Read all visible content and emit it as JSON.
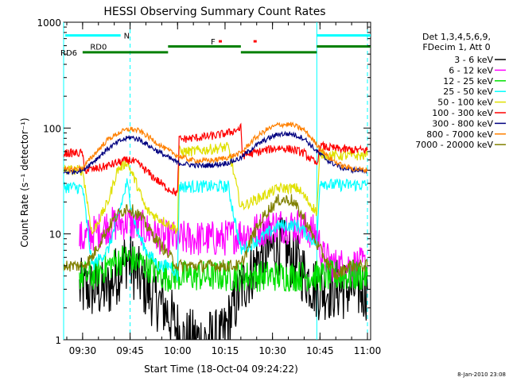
{
  "chart_data": {
    "type": "line",
    "title": "HESSI Observing Summary Count Rates",
    "xlabel": "Start Time (18-Oct-04 09:24:22)",
    "ylabel": "Count Rate (s⁻¹ detector⁻¹)",
    "ylog": true,
    "ylim": [
      1,
      1000
    ],
    "xlim_minutes_after_0924": [
      0,
      97
    ],
    "x_tick_labels": [
      "09:30",
      "09:45",
      "10:00",
      "10:15",
      "10:30",
      "10:45",
      "11:00"
    ],
    "x_tick_minutes": [
      6,
      21,
      36,
      51,
      66,
      81,
      96
    ],
    "y_tick_labels": [
      "1",
      "10",
      "100",
      "1000"
    ],
    "y_tick_values": [
      1,
      10,
      100,
      1000
    ],
    "legend": {
      "header_lines": [
        "Det 1,3,4,5,6,9,",
        "FDecim 1, Att 0"
      ],
      "placement": "right"
    },
    "series": [
      {
        "name": "3 - 6 keV",
        "color": "#000000",
        "x": [
          5,
          9,
          14,
          20,
          26,
          32,
          38,
          44,
          50,
          56,
          62,
          68,
          74,
          80,
          82,
          86,
          90,
          96
        ],
        "values": [
          3,
          3,
          3,
          6,
          3,
          2,
          1,
          1,
          1,
          3,
          6,
          8,
          5,
          3,
          3,
          3,
          3,
          3
        ]
      },
      {
        "name": "6 - 12 keV",
        "color": "#ff00ff",
        "x": [
          5,
          6,
          9,
          14,
          20,
          26,
          32,
          38,
          44,
          50,
          56,
          62,
          66,
          70,
          74,
          80,
          82,
          86,
          90,
          96
        ],
        "values": [
          9,
          9,
          10,
          12,
          13,
          11,
          9,
          9,
          9,
          9,
          10,
          11,
          12,
          12,
          12,
          10,
          6,
          5,
          5,
          5
        ]
      },
      {
        "name": "12 - 25 keV",
        "color": "#00e000",
        "x": [
          5,
          9,
          14,
          20,
          26,
          32,
          38,
          44,
          50,
          56,
          62,
          68,
          74,
          80,
          82,
          86,
          90,
          96
        ],
        "values": [
          4,
          4,
          5,
          6,
          5,
          4,
          4,
          4,
          4,
          4,
          4,
          4,
          4,
          4,
          4,
          4,
          4,
          4
        ]
      },
      {
        "name": "25 - 50 keV",
        "color": "#00ffff",
        "x": [
          0,
          6,
          9,
          14,
          17,
          20,
          23,
          26,
          30,
          34,
          36,
          36.5,
          40,
          44,
          48,
          52,
          56,
          62,
          68,
          74,
          80,
          81,
          84,
          88,
          92,
          96
        ],
        "values": [
          28,
          27,
          5,
          7,
          14,
          30,
          11,
          7,
          5,
          5,
          4,
          28,
          28,
          28,
          28,
          28,
          7,
          9,
          12,
          12,
          8,
          32,
          29,
          29,
          29,
          29
        ]
      },
      {
        "name": "50 - 100 keV",
        "color": "#e0e000",
        "x": [
          0,
          6,
          9,
          14,
          17,
          20,
          23,
          26,
          30,
          34,
          36,
          36.5,
          40,
          44,
          48,
          52,
          56,
          62,
          68,
          74,
          80,
          81,
          84,
          88,
          92,
          96
        ],
        "values": [
          40,
          40,
          10,
          20,
          40,
          48,
          30,
          17,
          14,
          12,
          11,
          60,
          60,
          62,
          64,
          66,
          18,
          22,
          27,
          27,
          16,
          58,
          55,
          55,
          55,
          55
        ]
      },
      {
        "name": "100 - 300 keV",
        "color": "#ff0000",
        "x": [
          0,
          6,
          6.5,
          10,
          14,
          18,
          21,
          24,
          28,
          32,
          36,
          36.5,
          40,
          44,
          48,
          52,
          56,
          56.5,
          60,
          64,
          68,
          72,
          76,
          80,
          81,
          84,
          88,
          92,
          96
        ],
        "values": [
          58,
          58,
          40,
          41,
          44,
          48,
          50,
          45,
          35,
          28,
          24,
          78,
          80,
          82,
          85,
          90,
          100,
          55,
          58,
          62,
          65,
          63,
          58,
          45,
          68,
          65,
          63,
          62,
          62
        ]
      },
      {
        "name": "300 - 800 keV",
        "color": "#000080",
        "x": [
          0,
          6,
          10,
          14,
          18,
          21,
          24,
          28,
          32,
          36,
          40,
          44,
          48,
          52,
          56,
          60,
          64,
          68,
          72,
          76,
          80,
          84,
          88,
          92,
          96
        ],
        "values": [
          38,
          40,
          50,
          64,
          76,
          82,
          78,
          65,
          55,
          47,
          45,
          44,
          45,
          47,
          52,
          66,
          78,
          88,
          88,
          80,
          60,
          48,
          42,
          40,
          40
        ]
      },
      {
        "name": "800 - 7000 keV",
        "color": "#ff8000",
        "x": [
          0,
          6,
          10,
          14,
          18,
          21,
          24,
          28,
          32,
          36,
          40,
          44,
          48,
          52,
          56,
          60,
          64,
          68,
          72,
          76,
          80,
          84,
          88,
          92,
          96
        ],
        "values": [
          40,
          42,
          58,
          78,
          92,
          98,
          94,
          78,
          64,
          55,
          50,
          49,
          50,
          53,
          58,
          78,
          96,
          108,
          108,
          96,
          70,
          52,
          44,
          41,
          40
        ]
      },
      {
        "name": "7000 - 20000 keV",
        "color": "#808000",
        "x": [
          0,
          6,
          9,
          12,
          16,
          20,
          24,
          28,
          32,
          36,
          40,
          44,
          48,
          52,
          56,
          60,
          64,
          68,
          72,
          76,
          80,
          84,
          86,
          90,
          96
        ],
        "values": [
          5,
          5,
          6,
          9,
          14,
          18,
          15,
          10,
          7,
          5,
          5,
          5,
          5,
          5,
          5,
          10,
          16,
          21,
          21,
          14,
          8,
          5,
          4,
          5,
          5
        ]
      }
    ],
    "vertical_lines_minutes": [
      0,
      21,
      80,
      96
    ],
    "vertical_line_styles": [
      "solid",
      "dashed",
      "solid",
      "dashed"
    ],
    "state_bars": [
      {
        "label": "N",
        "color": "#00ffff",
        "y_value": 750,
        "segments": [
          [
            0.5,
            18
          ],
          [
            80,
            97
          ]
        ]
      },
      {
        "label": "RD0",
        "color": "#008000",
        "y_value": 590,
        "segments": [
          [
            33,
            56
          ],
          [
            80,
            97
          ]
        ]
      },
      {
        "label": "RD6",
        "color": "#008000",
        "y_value": 520,
        "segments": [
          [
            6,
            33
          ],
          [
            56,
            80
          ]
        ]
      },
      {
        "label": "F",
        "color": "#ff0000",
        "y_value": 660,
        "segments": [
          [
            49,
            50
          ],
          [
            60,
            61
          ]
        ]
      }
    ]
  },
  "footer": {
    "date_stamp": "8-Jan-2010 23:08"
  }
}
